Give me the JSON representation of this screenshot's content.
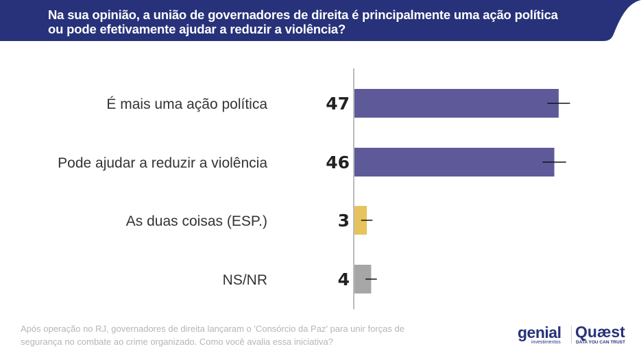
{
  "header": {
    "title": "Na sua opinião, a união de governadores de direita é principalmente uma ação política ou pode efetivamente ajudar a reduzir a violência?",
    "color": "#27327a"
  },
  "chart_data": {
    "type": "bar",
    "orientation": "horizontal",
    "title": "Na sua opinião, a união de governadores de direita é principalmente uma ação política ou pode efetivamente ajudar a reduzir a violência?",
    "categories": [
      "É mais uma ação política",
      "Pode ajudar a reduzir a violência",
      "As duas coisas (ESP.)",
      "NS/NR"
    ],
    "values": [
      47,
      46,
      3,
      4
    ],
    "labels": [
      "47",
      "46",
      "3",
      "4"
    ],
    "colors": [
      "#5e5a99",
      "#5e5a99",
      "#e6c35c",
      "#a6a6a6"
    ],
    "error_margin": [
      2.6,
      2.7,
      1.3,
      1.3
    ],
    "xlim": [
      0,
      50
    ],
    "unit": "%"
  },
  "footer": {
    "note": "Após operação no RJ, governadores de direita lançaram o 'Consórcio da Paz' para unir forças de segurança no combate ao crime organizado. Como você avalia essa iniciativa?"
  },
  "logos": {
    "genial": "genial",
    "genial_sub": "investimentos",
    "quaest": "Quæst",
    "quaest_sub": "DATA YOU CAN TRUST"
  }
}
